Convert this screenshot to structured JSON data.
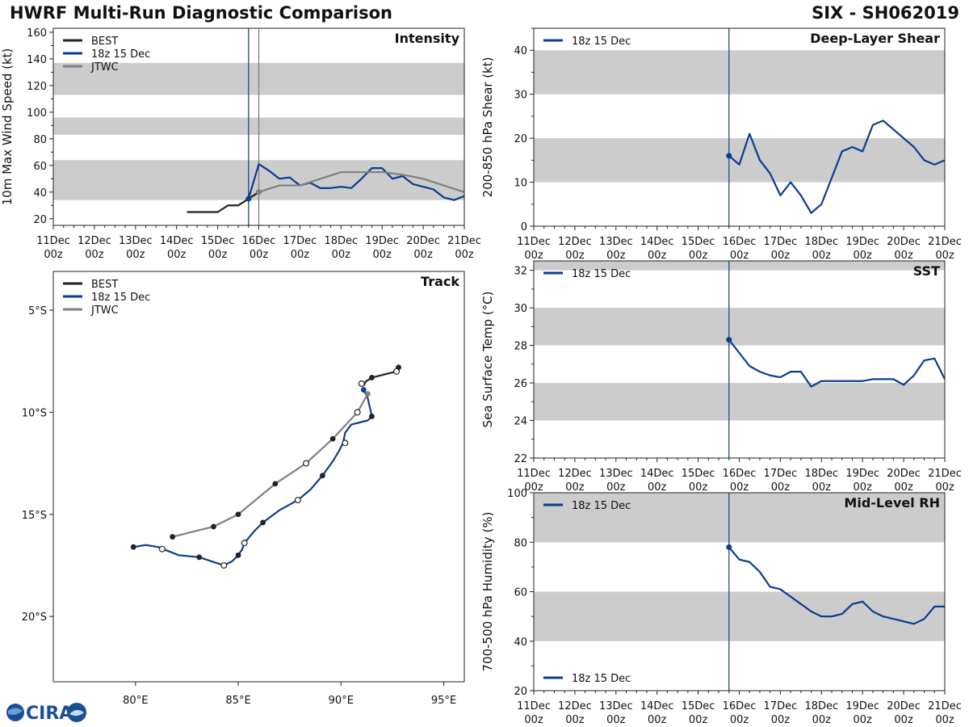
{
  "header": {
    "title": "HWRF Multi-Run Diagnostic Comparison",
    "storm": "SIX - SH062019"
  },
  "logo": {
    "text": "CIRA"
  },
  "colors": {
    "best": "#222222",
    "run": "#0a3d91",
    "jtwc": "#808080",
    "shade": "#cccccc",
    "vline": "#0a3d91",
    "vline_gray": "#777777"
  },
  "chart_data": [
    {
      "id": "intensity",
      "type": "line",
      "title": "Intensity",
      "ylabel": "10m Max Wind Speed (kt)",
      "xlim_days": [
        11,
        21
      ],
      "ylim": [
        15,
        163
      ],
      "yticks": [
        20,
        40,
        60,
        80,
        100,
        120,
        140,
        160
      ],
      "xtick_labels": [
        "11Dec\n00z",
        "12Dec\n00z",
        "13Dec\n00z",
        "14Dec\n00z",
        "15Dec\n00z",
        "16Dec\n00z",
        "17Dec\n00z",
        "18Dec\n00z",
        "19Dec\n00z",
        "20Dec\n00z",
        "21Dec\n00z"
      ],
      "shaded_bands": [
        [
          34,
          64
        ],
        [
          83,
          96
        ],
        [
          113,
          137
        ]
      ],
      "vlines": [
        {
          "x": 15.75,
          "style": "run"
        },
        {
          "x": 16.0,
          "style": "gray"
        }
      ],
      "legend": [
        "BEST",
        "18z 15 Dec",
        "JTWC"
      ],
      "series": [
        {
          "name": "BEST",
          "style": "best",
          "x": [
            14.25,
            14.5,
            14.75,
            15.0,
            15.25,
            15.5,
            15.75,
            16.0
          ],
          "y": [
            25,
            25,
            25,
            25,
            30,
            30,
            35,
            40
          ]
        },
        {
          "name": "18z 15 Dec",
          "style": "run",
          "x": [
            15.75,
            16.0,
            16.25,
            16.5,
            16.75,
            17.0,
            17.25,
            17.5,
            17.75,
            18.0,
            18.25,
            18.5,
            18.75,
            19.0,
            19.25,
            19.5,
            19.75,
            20.0,
            20.25,
            20.5,
            20.75,
            21.0
          ],
          "y": [
            35,
            61,
            56,
            50,
            51,
            45,
            47,
            43,
            43,
            44,
            43,
            50,
            58,
            58,
            50,
            52,
            46,
            44,
            42,
            36,
            34,
            37
          ]
        },
        {
          "name": "JTWC",
          "style": "jtwc",
          "x": [
            16.0,
            16.5,
            17.0,
            17.5,
            18.0,
            18.5,
            19.0,
            19.5,
            20.0,
            20.5,
            21.0
          ],
          "y": [
            40,
            45,
            45,
            50,
            55,
            55,
            55,
            53,
            50,
            45,
            40
          ]
        }
      ]
    },
    {
      "id": "shear",
      "type": "line",
      "title": "Deep-Layer Shear",
      "ylabel": "200-850 hPa Shear (kt)",
      "xlim_days": [
        11,
        21
      ],
      "ylim": [
        0,
        45
      ],
      "yticks": [
        0,
        10,
        20,
        30,
        40
      ],
      "xtick_labels": [
        "11Dec\n00z",
        "12Dec\n00z",
        "13Dec\n00z",
        "14Dec\n00z",
        "15Dec\n00z",
        "16Dec\n00z",
        "17Dec\n00z",
        "18Dec\n00z",
        "19Dec\n00z",
        "20Dec\n00z",
        "21Dec\n00z"
      ],
      "shaded_bands": [
        [
          10,
          20
        ],
        [
          30,
          40
        ]
      ],
      "vlines": [
        {
          "x": 15.75,
          "style": "run"
        }
      ],
      "legend": [
        "18z 15 Dec"
      ],
      "series": [
        {
          "name": "18z 15 Dec",
          "style": "run",
          "x": [
            15.75,
            16.0,
            16.25,
            16.5,
            16.75,
            17.0,
            17.25,
            17.5,
            17.75,
            18.0,
            18.25,
            18.5,
            18.75,
            19.0,
            19.25,
            19.5,
            19.75,
            20.0,
            20.25,
            20.5,
            20.75,
            21.0
          ],
          "y": [
            16,
            14,
            21,
            15,
            12,
            7,
            10,
            7,
            3,
            5,
            11,
            17,
            18,
            17,
            23,
            24,
            22,
            20,
            18,
            15,
            14,
            15
          ]
        }
      ]
    },
    {
      "id": "sst",
      "type": "line",
      "title": "SST",
      "ylabel": "Sea Surface Temp (°C)",
      "xlim_days": [
        11,
        21
      ],
      "ylim": [
        22,
        32.5
      ],
      "yticks": [
        22,
        24,
        26,
        28,
        30,
        32
      ],
      "xtick_labels": [
        "11Dec\n00z",
        "12Dec\n00z",
        "13Dec\n00z",
        "14Dec\n00z",
        "15Dec\n00z",
        "16Dec\n00z",
        "17Dec\n00z",
        "18Dec\n00z",
        "19Dec\n00z",
        "20Dec\n00z",
        "21Dec\n00z"
      ],
      "shaded_bands": [
        [
          24,
          26
        ],
        [
          28,
          30
        ],
        [
          32,
          32.5
        ]
      ],
      "vlines": [
        {
          "x": 15.75,
          "style": "run"
        }
      ],
      "legend": [
        "18z 15 Dec"
      ],
      "series": [
        {
          "name": "18z 15 Dec",
          "style": "run",
          "x": [
            15.75,
            16.0,
            16.25,
            16.5,
            16.75,
            17.0,
            17.25,
            17.5,
            17.75,
            18.0,
            18.25,
            18.5,
            18.75,
            19.0,
            19.25,
            19.5,
            19.75,
            20.0,
            20.25,
            20.5,
            20.75,
            21.0
          ],
          "y": [
            28.3,
            27.6,
            26.9,
            26.6,
            26.4,
            26.3,
            26.6,
            26.6,
            25.8,
            26.1,
            26.1,
            26.1,
            26.1,
            26.1,
            26.2,
            26.2,
            26.2,
            25.9,
            26.4,
            27.2,
            27.3,
            26.2
          ]
        }
      ]
    },
    {
      "id": "rh",
      "type": "line",
      "title": "Mid-Level RH",
      "ylabel": "700-500 hPa Humidity (%)",
      "xlim_days": [
        11,
        21
      ],
      "ylim": [
        20,
        100
      ],
      "yticks": [
        20,
        40,
        60,
        80,
        100
      ],
      "xtick_labels": [
        "11Dec\n00z",
        "12Dec\n00z",
        "13Dec\n00z",
        "14Dec\n00z",
        "15Dec\n00z",
        "16Dec\n00z",
        "17Dec\n00z",
        "18Dec\n00z",
        "19Dec\n00z",
        "20Dec\n00z",
        "21Dec\n00z"
      ],
      "shaded_bands": [
        [
          40,
          60
        ],
        [
          80,
          100
        ]
      ],
      "vlines": [
        {
          "x": 15.75,
          "style": "run"
        }
      ],
      "legend": [
        "18z 15 Dec"
      ],
      "series": [
        {
          "name": "18z 15 Dec",
          "style": "run",
          "x": [
            15.75,
            16.0,
            16.25,
            16.5,
            16.75,
            17.0,
            17.25,
            17.5,
            17.75,
            18.0,
            18.25,
            18.5,
            18.75,
            19.0,
            19.25,
            19.5,
            19.75,
            20.0,
            20.25,
            20.5,
            20.75,
            21.0
          ],
          "y": [
            78,
            73,
            72,
            68,
            62,
            61,
            58,
            55,
            52,
            50,
            50,
            51,
            55,
            56,
            52,
            50,
            49,
            48,
            47,
            49,
            54,
            54
          ]
        }
      ]
    },
    {
      "id": "track",
      "type": "scatter",
      "title": "Track",
      "xlim": [
        76,
        96
      ],
      "ylim": [
        -23.2,
        -3.1
      ],
      "xticks": [
        80,
        85,
        90,
        95
      ],
      "xtick_labels": [
        "80°E",
        "85°E",
        "90°E",
        "95°E"
      ],
      "yticks": [
        -5,
        -10,
        -15,
        -20
      ],
      "ytick_labels": [
        "5°S",
        "10°S",
        "15°S",
        "20°S"
      ],
      "legend": [
        "BEST",
        "18z 15 Dec",
        "JTWC"
      ],
      "series": [
        {
          "name": "BEST",
          "style": "best",
          "x": [
            92.8,
            92.7,
            91.5,
            91.2,
            91.1
          ],
          "y": [
            -7.8,
            -8.0,
            -8.3,
            -8.5,
            -8.7
          ],
          "markers": [
            {
              "x": 92.8,
              "y": -7.8,
              "type": "filled"
            },
            {
              "x": 92.7,
              "y": -8.0,
              "type": "open"
            },
            {
              "x": 91.5,
              "y": -8.3,
              "type": "filled"
            }
          ]
        },
        {
          "name": "18z 15 Dec",
          "style": "run",
          "x": [
            91.1,
            91.1,
            91.2,
            91.3,
            91.5,
            91.3,
            90.5,
            90.2,
            90.1,
            89.9,
            89.6,
            89.1,
            88.5,
            87.9,
            87.0,
            86.2,
            85.8,
            85.3,
            85.2,
            85.0,
            84.7,
            84.3,
            83.1,
            82.1,
            81.1,
            80.5,
            79.9
          ],
          "y": [
            -8.8,
            -8.9,
            -9.1,
            -9.3,
            -10.2,
            -10.4,
            -10.6,
            -11.0,
            -11.5,
            -11.9,
            -12.4,
            -13.1,
            -13.8,
            -14.3,
            -14.8,
            -15.4,
            -15.8,
            -16.4,
            -16.7,
            -17.0,
            -17.3,
            -17.5,
            -17.1,
            -17.0,
            -16.6,
            -16.5,
            -16.6
          ],
          "markers": [
            {
              "x": 91.1,
              "y": -8.9,
              "type": "filled"
            },
            {
              "x": 91.5,
              "y": -10.2,
              "type": "filled"
            },
            {
              "x": 90.2,
              "y": -11.5,
              "type": "open"
            },
            {
              "x": 89.1,
              "y": -13.1,
              "type": "filled"
            },
            {
              "x": 87.9,
              "y": -14.3,
              "type": "open"
            },
            {
              "x": 86.2,
              "y": -15.4,
              "type": "filled"
            },
            {
              "x": 85.3,
              "y": -16.4,
              "type": "open"
            },
            {
              "x": 85.0,
              "y": -17.0,
              "type": "filled"
            },
            {
              "x": 84.3,
              "y": -17.5,
              "type": "open"
            },
            {
              "x": 83.1,
              "y": -17.1,
              "type": "filled"
            },
            {
              "x": 81.3,
              "y": -16.7,
              "type": "open"
            },
            {
              "x": 79.9,
              "y": -16.6,
              "type": "filled"
            }
          ]
        },
        {
          "name": "JTWC",
          "style": "jtwc",
          "x": [
            91.3,
            90.8,
            89.6,
            88.3,
            86.8,
            85.0,
            83.8,
            81.8
          ],
          "y": [
            -9.1,
            -10.0,
            -11.3,
            -12.5,
            -13.5,
            -15.0,
            -15.6,
            -16.1
          ],
          "markers": [
            {
              "x": 91.3,
              "y": -9.1,
              "type": "gray"
            },
            {
              "x": 91.0,
              "y": -8.6,
              "type": "open"
            },
            {
              "x": 90.8,
              "y": -10.0,
              "type": "open"
            },
            {
              "x": 89.6,
              "y": -11.3,
              "type": "filled"
            },
            {
              "x": 88.3,
              "y": -12.5,
              "type": "open"
            },
            {
              "x": 86.8,
              "y": -13.5,
              "type": "filled"
            },
            {
              "x": 85.0,
              "y": -15.0,
              "type": "filled"
            },
            {
              "x": 83.8,
              "y": -15.6,
              "type": "filled"
            },
            {
              "x": 81.8,
              "y": -16.1,
              "type": "filled"
            }
          ]
        }
      ]
    }
  ]
}
